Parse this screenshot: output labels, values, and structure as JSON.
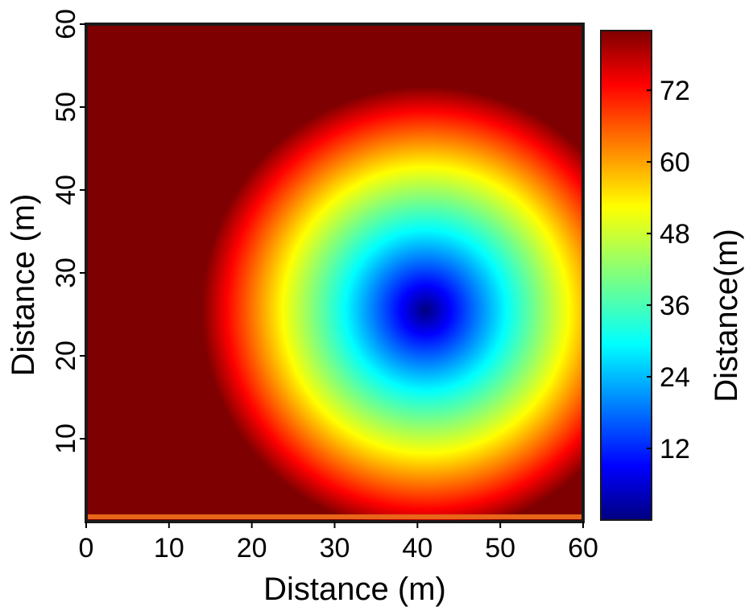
{
  "chart_data": {
    "type": "heatmap",
    "title": "",
    "xlabel": "Distance (m)",
    "ylabel": "Distance (m)",
    "colorbar_label": "Distance(m)",
    "xlim": [
      0,
      60
    ],
    "ylim": [
      0,
      60
    ],
    "x_ticks": [
      0,
      10,
      20,
      30,
      40,
      50,
      60
    ],
    "y_ticks": [
      10,
      20,
      30,
      40,
      50,
      60
    ],
    "colorbar_ticks": [
      12,
      24,
      36,
      48,
      60,
      72
    ],
    "colorbar_range": [
      0,
      82
    ],
    "colormap": "jet",
    "field": {
      "description_of_values": "radial distance from source point",
      "source_point": {
        "x": 41,
        "y": 25.5
      },
      "saturation_radius": 27,
      "background_value": 82
    },
    "grid": false,
    "legend": "colorbar-right"
  },
  "colors": {
    "background": "#7f0000",
    "low": "#00007f",
    "mid": "#7fff7f",
    "high": "#7f0000"
  }
}
